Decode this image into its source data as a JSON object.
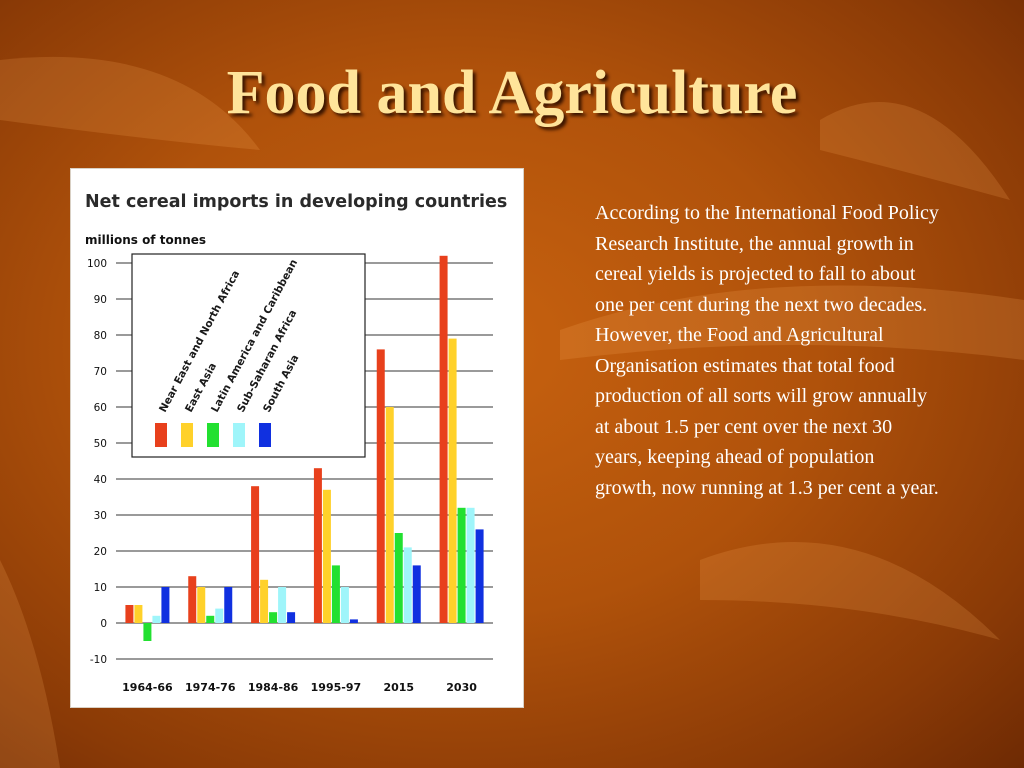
{
  "slide": {
    "title": "Food and Agriculture",
    "body_text": "According to the International Food Policy Research Institute, the annual growth in cereal yields is projected to fall to about one per cent during the next two decades. However, the Food and Agricultural Organisation estimates that total food production of all sorts will grow annually at about 1.5 per cent over the next 30 years, keeping ahead of population growth, now running at 1.3 per cent a year."
  },
  "colors": {
    "title": "#ffe49a",
    "body_text": "#ffffff",
    "background": "#b0520b"
  },
  "chart_data": {
    "type": "bar",
    "title": "Net cereal imports in developing countries",
    "ylabel": "millions of tonnes",
    "xlabel": "",
    "ylim": [
      -10,
      100
    ],
    "yticks": [
      -10,
      0,
      10,
      20,
      30,
      40,
      50,
      60,
      70,
      80,
      90,
      100
    ],
    "grid": true,
    "legend_placement": "top-left",
    "categories": [
      "1964-66",
      "1974-76",
      "1984-86",
      "1995-97",
      "2015",
      "2030"
    ],
    "series": [
      {
        "name": "Near East and North Africa",
        "color": "#e8401c",
        "values": [
          5,
          13,
          38,
          43,
          76,
          102
        ]
      },
      {
        "name": "East Asia",
        "color": "#ffd12a",
        "values": [
          5,
          10,
          12,
          37,
          60,
          79
        ]
      },
      {
        "name": "Latin America and Caribbean",
        "color": "#22e030",
        "values": [
          -5,
          2,
          3,
          16,
          25,
          32
        ]
      },
      {
        "name": "Sub-Saharan Africa",
        "color": "#9ff5fa",
        "values": [
          2,
          4,
          10,
          10,
          21,
          32
        ]
      },
      {
        "name": "South Asia",
        "color": "#1030e0",
        "values": [
          10,
          10,
          3,
          1,
          16,
          26
        ]
      }
    ]
  }
}
